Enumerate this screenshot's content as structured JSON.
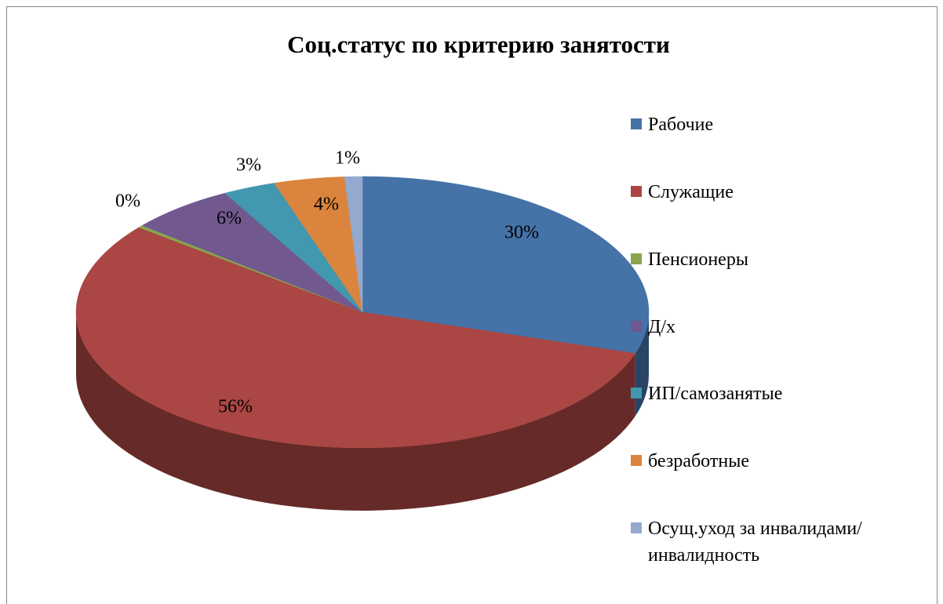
{
  "chart_data": {
    "type": "pie3d",
    "title": "Соц.статус  по критерию занятости",
    "categories": [
      "Рабочие",
      "Служащие",
      "Пенсионеры",
      "Д/х",
      "ИП/самозанятые",
      "безработные",
      "Осущ.уход за инвалидами/инвалидность"
    ],
    "values": [
      30,
      56,
      0.3,
      6,
      3,
      4,
      1
    ],
    "value_labels": [
      "30%",
      "56%",
      "0%",
      "6%",
      "3%",
      "4%",
      "1%"
    ],
    "colors": [
      "#4572a7",
      "#aa4643",
      "#89a54e",
      "#71588f",
      "#4198af",
      "#db843d",
      "#93a9cf"
    ],
    "legend": "right"
  }
}
